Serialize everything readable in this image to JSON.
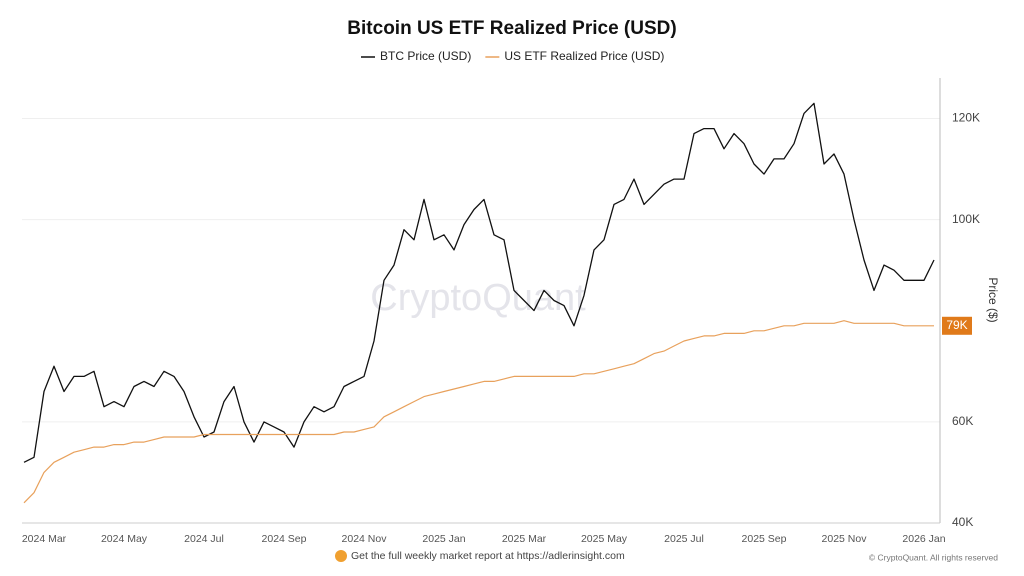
{
  "chart_data": {
    "type": "line",
    "title": "Bitcoin US ETF Realized Price (USD)",
    "y_label": "Price ($)",
    "watermark": "CryptoQuant",
    "footer_note": "Get the full weekly market report at https://adlerinsight.com",
    "copyright": "© CryptoQuant. All rights reserved",
    "categories": [
      null,
      null,
      "2024 Mar",
      null,
      null,
      null,
      null,
      null,
      null,
      null,
      "2024 May",
      null,
      null,
      null,
      null,
      null,
      null,
      null,
      "2024 Jul",
      null,
      null,
      null,
      null,
      null,
      null,
      null,
      "2024 Sep",
      null,
      null,
      null,
      null,
      null,
      null,
      null,
      "2024 Nov",
      null,
      null,
      null,
      null,
      null,
      null,
      null,
      "2025 Jan",
      null,
      null,
      null,
      null,
      null,
      null,
      null,
      "2025 Mar",
      null,
      null,
      null,
      null,
      null,
      null,
      null,
      "2025 May",
      null,
      null,
      null,
      null,
      null,
      null,
      null,
      "2025 Jul",
      null,
      null,
      null,
      null,
      null,
      null,
      null,
      "2025 Sep",
      null,
      null,
      null,
      null,
      null,
      null,
      null,
      "2025 Nov",
      null,
      null,
      null,
      null,
      null,
      null,
      null,
      "2026 Jan",
      null
    ],
    "series": [
      {
        "name": "BTC Price (USD)",
        "color": "#111111",
        "values": [
          52000,
          53000,
          66000,
          71000,
          66000,
          69000,
          69000,
          70000,
          63000,
          64000,
          63000,
          67000,
          68000,
          67000,
          70000,
          69000,
          66000,
          61000,
          57000,
          58000,
          64000,
          67000,
          60000,
          56000,
          60000,
          59000,
          58000,
          55000,
          60000,
          63000,
          62000,
          63000,
          67000,
          68000,
          69000,
          76000,
          88000,
          91000,
          98000,
          96000,
          104000,
          96000,
          97000,
          94000,
          99000,
          102000,
          104000,
          97000,
          96000,
          86000,
          84000,
          82000,
          86000,
          84000,
          83000,
          79000,
          85000,
          94000,
          96000,
          103000,
          104000,
          108000,
          103000,
          105000,
          107000,
          108000,
          108000,
          117000,
          118000,
          118000,
          114000,
          117000,
          115000,
          111000,
          109000,
          112000,
          112000,
          115000,
          121000,
          123000,
          111000,
          113000,
          109000,
          100000,
          92000,
          86000,
          91000,
          90000,
          88000,
          88000,
          88000,
          92000
        ]
      },
      {
        "name": "US ETF Realized Price (USD)",
        "color": "#e8a15c",
        "values": [
          44000,
          46000,
          50000,
          52000,
          53000,
          54000,
          54500,
          55000,
          55000,
          55500,
          55500,
          56000,
          56000,
          56500,
          57000,
          57000,
          57000,
          57000,
          57500,
          57500,
          57500,
          57500,
          57500,
          57500,
          57500,
          57500,
          57500,
          57500,
          57500,
          57500,
          57500,
          57500,
          58000,
          58000,
          58500,
          59000,
          61000,
          62000,
          63000,
          64000,
          65000,
          65500,
          66000,
          66500,
          67000,
          67500,
          68000,
          68000,
          68500,
          69000,
          69000,
          69000,
          69000,
          69000,
          69000,
          69000,
          69500,
          69500,
          70000,
          70500,
          71000,
          71500,
          72500,
          73500,
          74000,
          75000,
          76000,
          76500,
          77000,
          77000,
          77500,
          77500,
          77500,
          78000,
          78000,
          78500,
          79000,
          79000,
          79500,
          79500,
          79500,
          79500,
          80000,
          79500,
          79500,
          79500,
          79500,
          79500,
          79000,
          79000,
          79000,
          79000
        ],
        "value_labels": [
          null,
          null,
          null,
          null,
          null,
          null,
          null,
          null,
          null,
          null,
          null,
          null,
          null,
          null,
          null,
          null,
          null,
          null,
          null,
          null,
          null,
          null,
          null,
          null,
          null,
          null,
          null,
          null,
          null,
          null,
          null,
          null,
          null,
          null,
          null,
          null,
          null,
          null,
          null,
          null,
          null,
          null,
          null,
          null,
          null,
          null,
          null,
          null,
          null,
          null,
          null,
          null,
          null,
          null,
          null,
          null,
          null,
          null,
          null,
          null,
          null,
          null,
          null,
          null,
          null,
          null,
          null,
          null,
          null,
          null,
          null,
          null,
          null,
          null,
          null,
          null,
          null,
          null,
          null,
          null,
          null,
          null,
          null,
          null,
          null,
          null,
          null,
          null,
          null,
          null,
          null,
          "79K"
        ]
      }
    ],
    "ylim": [
      40000,
      128000
    ],
    "yticks": [
      {
        "value": 40000,
        "label": "40K"
      },
      {
        "value": 60000,
        "label": "60K"
      },
      {
        "value": 100000,
        "label": "100K"
      },
      {
        "value": 120000,
        "label": "120K"
      }
    ],
    "grid": true,
    "y_axis_side": "right"
  }
}
